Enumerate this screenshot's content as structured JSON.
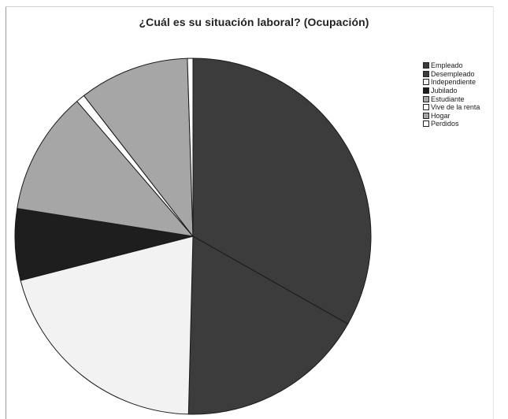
{
  "chart_data": {
    "type": "pie",
    "title": "¿Cuál es su situación laboral? (Ocupación)",
    "legend_position": "right",
    "categories": [
      "Empleado",
      "Desempleado",
      "Independiente",
      "Jubilado",
      "Estudiante",
      "Vive de la renta",
      "Hogar",
      "Perdidos"
    ],
    "values": [
      33.2,
      17.2,
      20.6,
      6.5,
      11.2,
      0.8,
      10.0,
      0.5
    ],
    "colors": [
      "#3c3c3c",
      "#3c3c3c",
      "#f2f2f2",
      "#1e1e1e",
      "#a6a6a6",
      "#ffffff",
      "#a6a6a6",
      "#ffffff"
    ],
    "start_angle_deg": 0,
    "direction": "clockwise"
  }
}
